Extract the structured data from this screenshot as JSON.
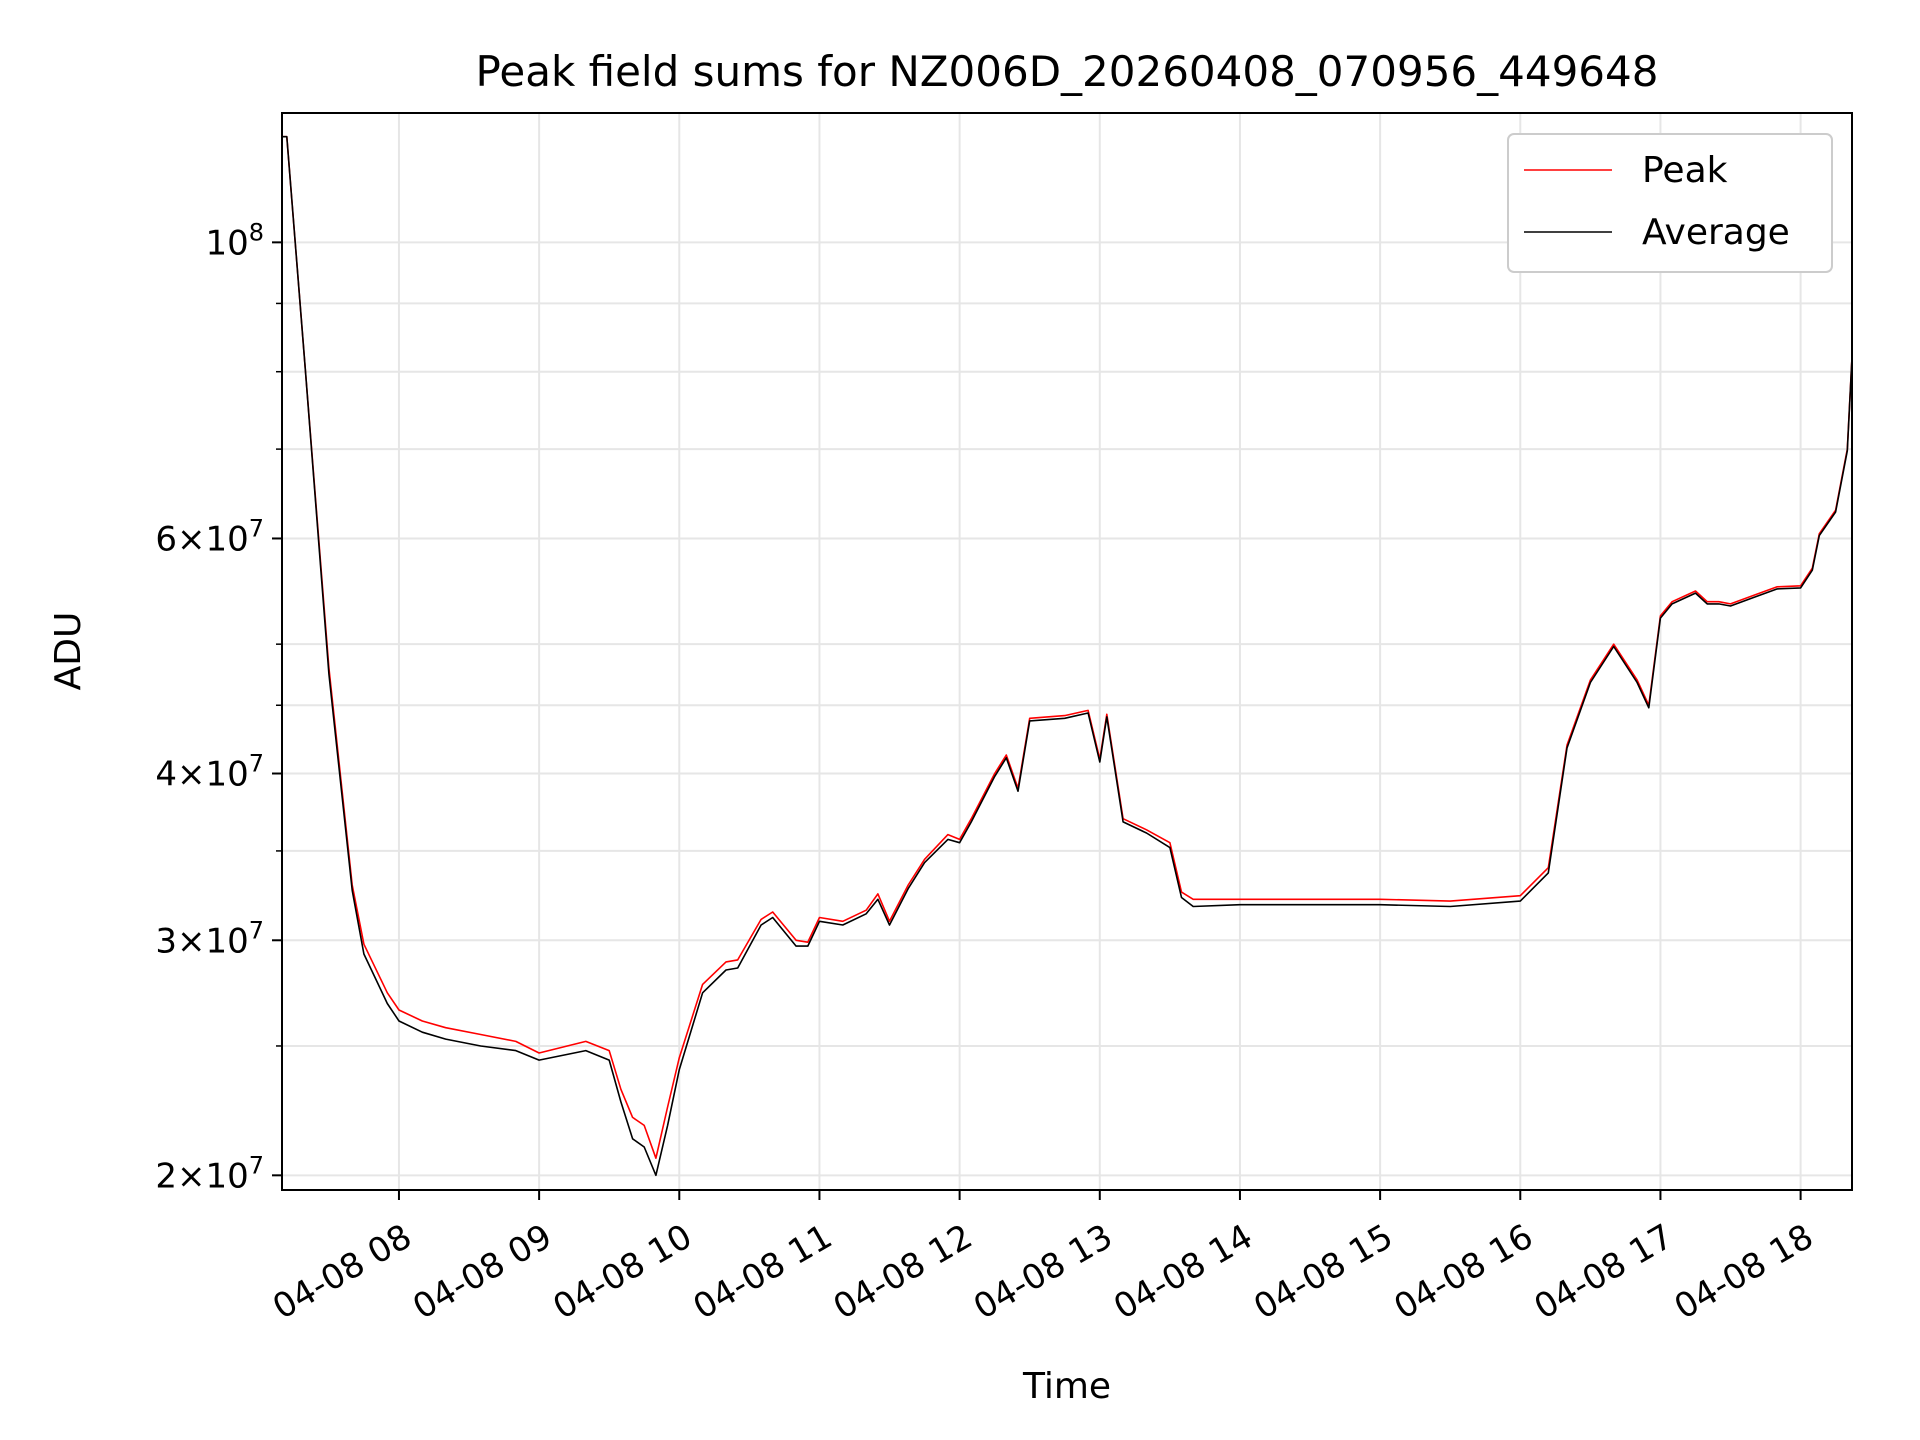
{
  "chart_data": {
    "type": "line",
    "title": "Peak field sums for NZ006D_20260408_070956_449648",
    "xlabel": "Time",
    "ylabel": "ADU",
    "x_range": [
      "2026-04-08 07:09:56",
      "2026-04-08 18:22"
    ],
    "ylim": [
      19500000,
      125000000
    ],
    "yscale": "log",
    "grid": true,
    "legend_position": "top-right",
    "x_tick_labels": [
      "04-08 08",
      "04-08 09",
      "04-08 10",
      "04-08 11",
      "04-08 12",
      "04-08 13",
      "04-08 14",
      "04-08 15",
      "04-08 16",
      "04-08 17",
      "04-08 18"
    ],
    "y_tick_labels": [
      {
        "mantissa": "",
        "base": "10",
        "exp": "8",
        "value": 100000000
      },
      {
        "mantissa": "6",
        "base": "10",
        "exp": "7",
        "value": 60000000
      },
      {
        "mantissa": "4",
        "base": "10",
        "exp": "7",
        "value": 40000000
      },
      {
        "mantissa": "3",
        "base": "10",
        "exp": "7",
        "value": 30000000
      },
      {
        "mantissa": "2",
        "base": "10",
        "exp": "7",
        "value": 20000000
      }
    ],
    "series": [
      {
        "name": "Peak",
        "color": "#ff0000",
        "x": [
          "2026-04-08 07:10",
          "2026-04-08 07:12",
          "2026-04-08 07:20",
          "2026-04-08 07:30",
          "2026-04-08 07:40",
          "2026-04-08 07:45",
          "2026-04-08 07:55",
          "2026-04-08 08:00",
          "2026-04-08 08:10",
          "2026-04-08 08:20",
          "2026-04-08 08:35",
          "2026-04-08 08:50",
          "2026-04-08 09:00",
          "2026-04-08 09:20",
          "2026-04-08 09:30",
          "2026-04-08 09:35",
          "2026-04-08 09:40",
          "2026-04-08 09:45",
          "2026-04-08 09:50",
          "2026-04-08 09:55",
          "2026-04-08 10:00",
          "2026-04-08 10:10",
          "2026-04-08 10:20",
          "2026-04-08 10:25",
          "2026-04-08 10:35",
          "2026-04-08 10:40",
          "2026-04-08 10:50",
          "2026-04-08 10:55",
          "2026-04-08 11:00",
          "2026-04-08 11:10",
          "2026-04-08 11:20",
          "2026-04-08 11:25",
          "2026-04-08 11:30",
          "2026-04-08 11:38",
          "2026-04-08 11:45",
          "2026-04-08 11:55",
          "2026-04-08 12:00",
          "2026-04-08 12:05",
          "2026-04-08 12:15",
          "2026-04-08 12:20",
          "2026-04-08 12:25",
          "2026-04-08 12:30",
          "2026-04-08 12:45",
          "2026-04-08 12:55",
          "2026-04-08 13:00",
          "2026-04-08 13:03",
          "2026-04-08 13:10",
          "2026-04-08 13:20",
          "2026-04-08 13:30",
          "2026-04-08 13:35",
          "2026-04-08 13:40",
          "2026-04-08 14:00",
          "2026-04-08 14:30",
          "2026-04-08 15:00",
          "2026-04-08 15:30",
          "2026-04-08 16:00",
          "2026-04-08 16:12",
          "2026-04-08 16:20",
          "2026-04-08 16:30",
          "2026-04-08 16:40",
          "2026-04-08 16:50",
          "2026-04-08 16:55",
          "2026-04-08 17:00",
          "2026-04-08 17:05",
          "2026-04-08 17:15",
          "2026-04-08 17:20",
          "2026-04-08 17:25",
          "2026-04-08 17:30",
          "2026-04-08 17:40",
          "2026-04-08 17:50",
          "2026-04-08 18:00",
          "2026-04-08 18:05",
          "2026-04-08 18:08",
          "2026-04-08 18:15",
          "2026-04-08 18:20",
          "2026-04-08 18:22"
        ],
        "values": [
          120000000,
          120000000,
          80000000,
          48000000,
          33000000,
          29800000,
          27400000,
          26600000,
          26100000,
          25800000,
          25500000,
          25200000,
          24700000,
          25200000,
          24800000,
          23200000,
          22100000,
          21800000,
          20600000,
          22500000,
          24500000,
          27800000,
          28900000,
          29000000,
          31100000,
          31500000,
          30000000,
          29900000,
          31200000,
          31000000,
          31600000,
          32500000,
          31000000,
          33000000,
          34500000,
          36000000,
          35700000,
          37000000,
          40000000,
          41300000,
          39000000,
          44000000,
          44200000,
          44600000,
          41000000,
          44300000,
          37000000,
          36300000,
          35500000,
          32600000,
          32200000,
          32200000,
          32200000,
          32200000,
          32100000,
          32400000,
          34000000,
          42000000,
          47000000,
          50000000,
          47000000,
          45000000,
          52500000,
          53800000,
          54800000,
          53800000,
          53800000,
          53600000,
          54400000,
          55200000,
          55300000,
          57000000,
          60500000,
          63000000,
          70000000,
          82000000
        ]
      },
      {
        "name": "Average",
        "color": "#000000",
        "x": [
          "2026-04-08 07:10",
          "2026-04-08 07:12",
          "2026-04-08 07:20",
          "2026-04-08 07:30",
          "2026-04-08 07:40",
          "2026-04-08 07:45",
          "2026-04-08 07:55",
          "2026-04-08 08:00",
          "2026-04-08 08:10",
          "2026-04-08 08:20",
          "2026-04-08 08:35",
          "2026-04-08 08:50",
          "2026-04-08 09:00",
          "2026-04-08 09:20",
          "2026-04-08 09:30",
          "2026-04-08 09:35",
          "2026-04-08 09:40",
          "2026-04-08 09:45",
          "2026-04-08 09:50",
          "2026-04-08 09:55",
          "2026-04-08 10:00",
          "2026-04-08 10:10",
          "2026-04-08 10:20",
          "2026-04-08 10:25",
          "2026-04-08 10:35",
          "2026-04-08 10:40",
          "2026-04-08 10:50",
          "2026-04-08 10:55",
          "2026-04-08 11:00",
          "2026-04-08 11:10",
          "2026-04-08 11:20",
          "2026-04-08 11:25",
          "2026-04-08 11:30",
          "2026-04-08 11:38",
          "2026-04-08 11:45",
          "2026-04-08 11:55",
          "2026-04-08 12:00",
          "2026-04-08 12:05",
          "2026-04-08 12:15",
          "2026-04-08 12:20",
          "2026-04-08 12:25",
          "2026-04-08 12:30",
          "2026-04-08 12:45",
          "2026-04-08 12:55",
          "2026-04-08 13:00",
          "2026-04-08 13:03",
          "2026-04-08 13:10",
          "2026-04-08 13:20",
          "2026-04-08 13:30",
          "2026-04-08 13:35",
          "2026-04-08 13:40",
          "2026-04-08 14:00",
          "2026-04-08 14:30",
          "2026-04-08 15:00",
          "2026-04-08 15:30",
          "2026-04-08 16:00",
          "2026-04-08 16:12",
          "2026-04-08 16:20",
          "2026-04-08 16:30",
          "2026-04-08 16:40",
          "2026-04-08 16:50",
          "2026-04-08 16:55",
          "2026-04-08 17:00",
          "2026-04-08 17:05",
          "2026-04-08 17:15",
          "2026-04-08 17:20",
          "2026-04-08 17:25",
          "2026-04-08 17:30",
          "2026-04-08 17:40",
          "2026-04-08 17:50",
          "2026-04-08 18:00",
          "2026-04-08 18:05",
          "2026-04-08 18:08",
          "2026-04-08 18:15",
          "2026-04-08 18:20",
          "2026-04-08 18:22"
        ],
        "values": [
          120000000,
          120000000,
          80000000,
          47500000,
          32700000,
          29300000,
          26900000,
          26100000,
          25600000,
          25300000,
          25000000,
          24800000,
          24400000,
          24800000,
          24400000,
          22700000,
          21300000,
          21000000,
          20000000,
          21800000,
          24000000,
          27400000,
          28500000,
          28600000,
          30800000,
          31200000,
          29700000,
          29700000,
          31000000,
          30800000,
          31400000,
          32200000,
          30800000,
          32800000,
          34300000,
          35700000,
          35500000,
          36800000,
          39800000,
          41100000,
          38800000,
          43800000,
          44000000,
          44400000,
          40800000,
          44100000,
          36800000,
          36100000,
          35200000,
          32300000,
          31800000,
          31900000,
          31900000,
          31900000,
          31800000,
          32100000,
          33700000,
          41800000,
          46800000,
          49800000,
          46800000,
          44800000,
          52300000,
          53600000,
          54600000,
          53600000,
          53600000,
          53400000,
          54200000,
          55000000,
          55100000,
          56800000,
          60300000,
          62800000,
          69800000,
          82000000
        ]
      }
    ]
  }
}
